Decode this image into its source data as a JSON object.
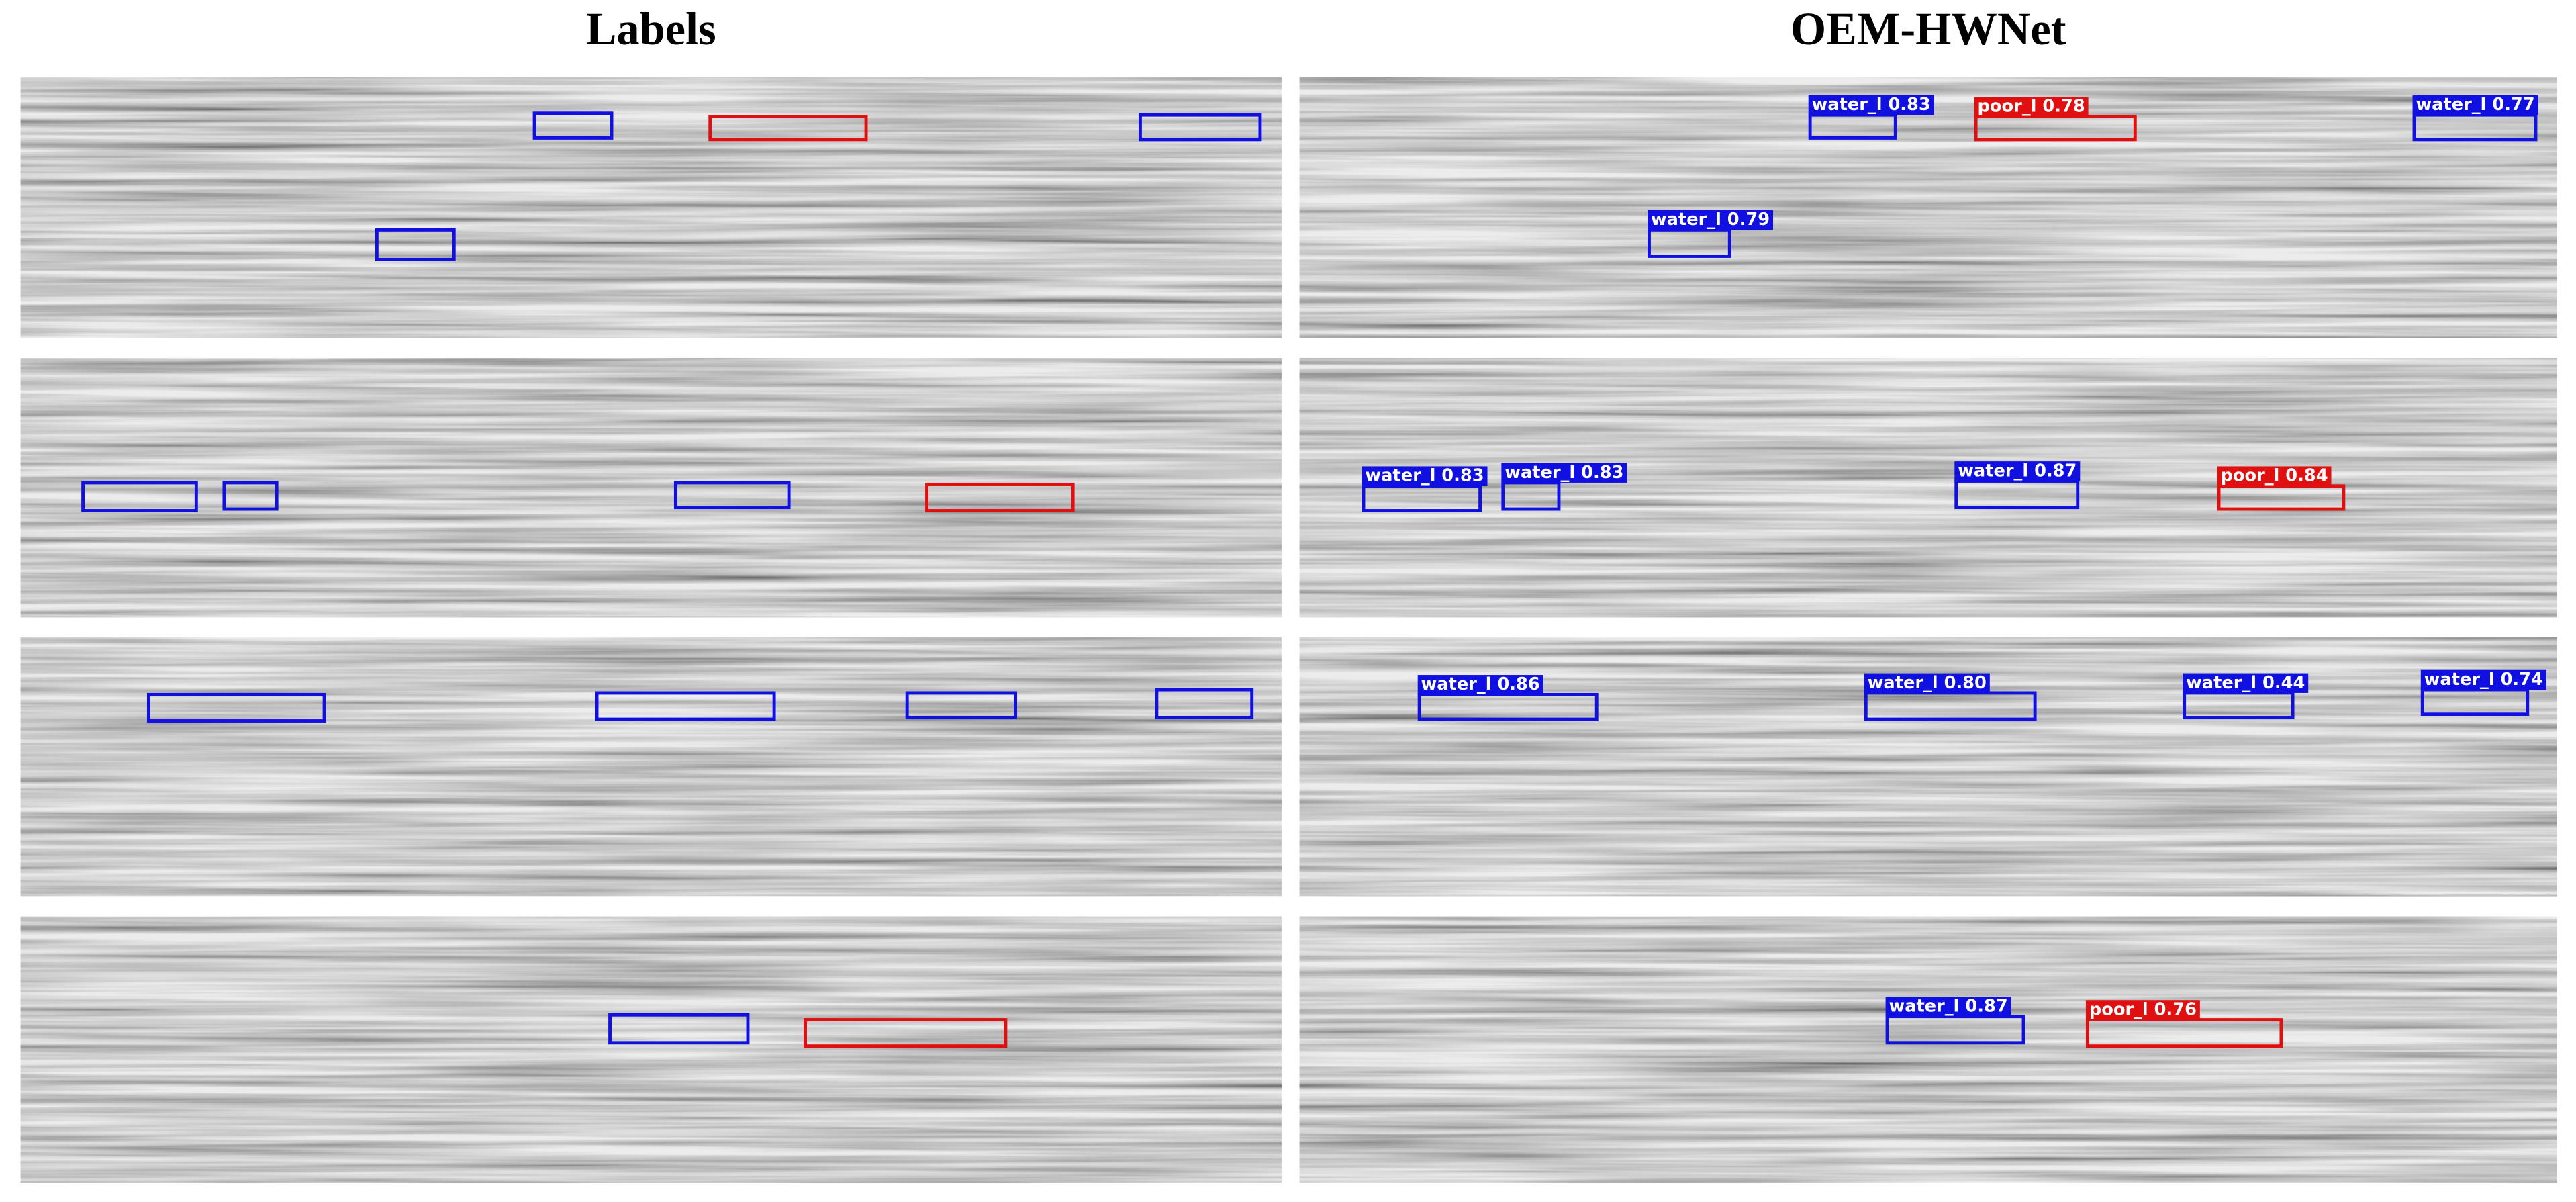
{
  "titles": {
    "left": "Labels",
    "right": "OEM-HWNet"
  },
  "detections": [
    [
      "water_l 0.83",
      "poor_l 0.78",
      "water_l 0.77",
      "water_l 0.79"
    ],
    [
      "water_l 0.83",
      "water_l 0.83",
      "water_l 0.87",
      "poor_l 0.84"
    ],
    [
      "water_l 0.86",
      "water_l 0.80",
      "water_l 0.44",
      "water_l 0.74"
    ],
    [
      "water_l 0.87",
      "poor_l 0.76"
    ]
  ]
}
